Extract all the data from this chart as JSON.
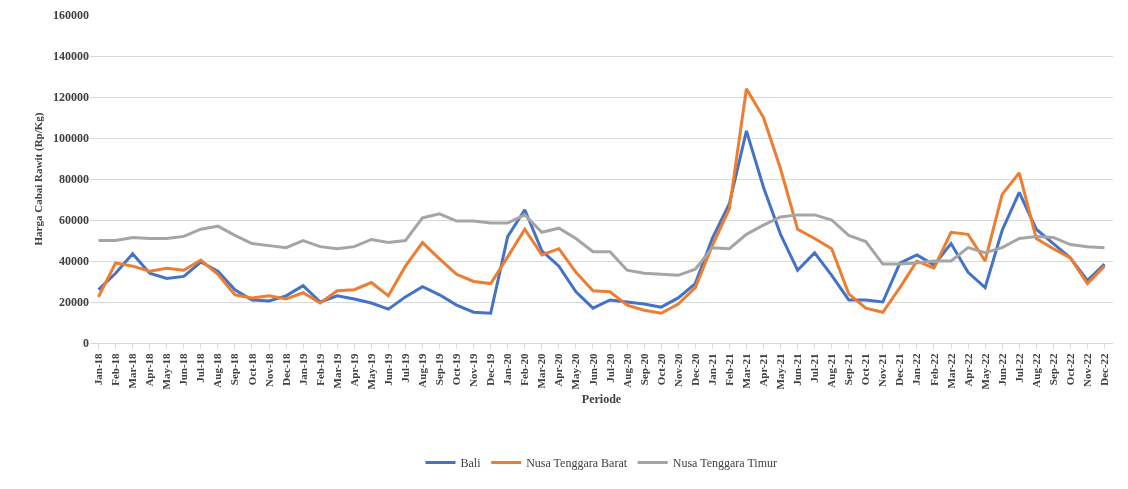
{
  "chart_data": {
    "type": "line",
    "xlabel": "Periode",
    "ylabel": "Harga Cabai Rawit (Rp/Kg)",
    "categories": [
      "Jan-18",
      "Feb-18",
      "Mar-18",
      "Apr-18",
      "May-18",
      "Jun-18",
      "Jul-18",
      "Aug-18",
      "Sep-18",
      "Oct-18",
      "Nov-18",
      "Dec-18",
      "Jan-19",
      "Feb-19",
      "Mar-19",
      "Apr-19",
      "May-19",
      "Jun-19",
      "Jul-19",
      "Aug-19",
      "Sep-19",
      "Oct-19",
      "Nov-19",
      "Dec-19",
      "Jan-20",
      "Feb-20",
      "Mar-20",
      "Apr-20",
      "May-20",
      "Jun-20",
      "Jul-20",
      "Aug-20",
      "Sep-20",
      "Oct-20",
      "Nov-20",
      "Dec-20",
      "Jan-21",
      "Feb-21",
      "Mar-21",
      "Apr-21",
      "May-21",
      "Jun-21",
      "Jul-21",
      "Aug-21",
      "Sep-21",
      "Oct-21",
      "Nov-21",
      "Dec-21",
      "Jan-22",
      "Feb-22",
      "Mar-22",
      "Apr-22",
      "May-22",
      "Jun-22",
      "Jul-22",
      "Aug-22",
      "Sep-22",
      "Oct-22",
      "Nov-22",
      "Dec-22"
    ],
    "series": [
      {
        "name": "Bali",
        "color": "#4472c4",
        "values": [
          26000,
          34000,
          43500,
          34000,
          31500,
          32500,
          39500,
          35000,
          26000,
          21000,
          20500,
          23000,
          28000,
          20000,
          23000,
          21500,
          19500,
          16500,
          22500,
          27500,
          23500,
          18500,
          15000,
          14500,
          52000,
          65000,
          45000,
          37500,
          25000,
          17000,
          21000,
          20000,
          19000,
          17500,
          22000,
          29000,
          51000,
          68000,
          103500,
          76000,
          53000,
          35500,
          44000,
          33000,
          21000,
          21000,
          20000,
          39000,
          43000,
          38000,
          48500,
          34500,
          27000,
          55000,
          73500,
          55500,
          48500,
          41500,
          30500,
          38500
        ]
      },
      {
        "name": "Nusa Tenggara Barat",
        "color": "#ed7d31",
        "values": [
          22500,
          39000,
          37500,
          35000,
          36500,
          35500,
          40500,
          33500,
          23500,
          22000,
          23000,
          21500,
          24500,
          19500,
          25500,
          26000,
          29500,
          23000,
          37500,
          49000,
          41000,
          33500,
          30000,
          29000,
          42000,
          55500,
          43000,
          46000,
          34500,
          25500,
          25000,
          18500,
          16000,
          14500,
          19000,
          27000,
          47500,
          65500,
          124000,
          110000,
          85000,
          55500,
          51000,
          46000,
          24000,
          17000,
          15000,
          27000,
          40000,
          36500,
          54000,
          53000,
          40000,
          72500,
          83000,
          51000,
          46000,
          41500,
          29000,
          37500
        ]
      },
      {
        "name": "Nusa Tenggara Timur",
        "color": "#a5a5a5",
        "values": [
          50000,
          50000,
          51500,
          51000,
          51000,
          52000,
          55500,
          57000,
          52500,
          48500,
          47500,
          46500,
          50000,
          47000,
          46000,
          47000,
          50500,
          49000,
          50000,
          61000,
          63000,
          59500,
          59500,
          58500,
          58500,
          62500,
          54000,
          56000,
          51000,
          44500,
          44500,
          35500,
          34000,
          33500,
          33000,
          36000,
          46500,
          46000,
          53000,
          57500,
          61500,
          62500,
          62500,
          60000,
          52500,
          49500,
          38500,
          38500,
          39000,
          40000,
          40000,
          46500,
          44000,
          46500,
          51000,
          52000,
          51500,
          48000,
          47000,
          46500
        ]
      }
    ],
    "ylim": [
      0,
      160000
    ],
    "yticks": [
      0,
      20000,
      40000,
      60000,
      80000,
      100000,
      120000,
      140000,
      160000
    ],
    "grid": "y",
    "legend": "bottom",
    "marker": "none",
    "line_style": "solid"
  }
}
